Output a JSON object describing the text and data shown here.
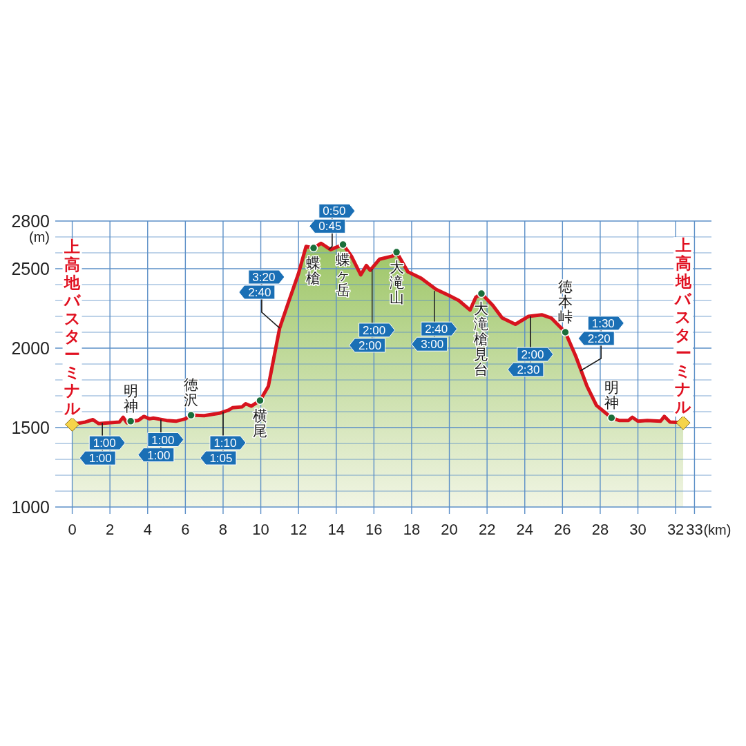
{
  "chart_data": {
    "type": "area",
    "ylabel": "(m)",
    "xlabel": "(km)",
    "xlim": [
      -0.9,
      33.9
    ],
    "ylim": [
      1000,
      2800
    ],
    "xticks": [
      0,
      2,
      4,
      6,
      8,
      10,
      12,
      14,
      16,
      18,
      20,
      22,
      24,
      26,
      28,
      30,
      32,
      33
    ],
    "yticks": [
      1000,
      {
        "value": 1100,
        "label": null
      },
      {
        "value": 1200,
        "label": null
      },
      {
        "value": 1300,
        "label": null
      },
      {
        "value": 1400,
        "label": null
      },
      1500,
      {
        "value": 1600,
        "label": null
      },
      {
        "value": 1700,
        "label": null
      },
      {
        "value": 1800,
        "label": null
      },
      {
        "value": 1900,
        "label": null
      },
      2000,
      {
        "value": 2100,
        "label": null
      },
      {
        "value": 2200,
        "label": null
      },
      {
        "value": 2300,
        "label": null
      },
      {
        "value": 2400,
        "label": null
      },
      2500,
      {
        "value": 2600,
        "label": null
      },
      {
        "value": 2700,
        "label": null
      },
      2800
    ],
    "grid": true,
    "series": [
      {
        "color": "#d7141e",
        "marker": "none",
        "x": [
          0,
          0.7,
          1.1,
          1.4,
          2.0,
          2.5,
          2.7,
          2.9,
          3.1,
          3.5,
          3.8,
          4.1,
          4.3,
          5.0,
          5.5,
          6.0,
          6.3,
          7.0,
          7.8,
          8.3,
          8.5,
          9.0,
          9.2,
          9.5,
          9.96,
          10.4,
          11.0,
          11.5,
          12.0,
          12.4,
          12.8,
          13.2,
          13.7,
          14.36,
          14.8,
          15.3,
          15.6,
          15.8,
          16.3,
          17.0,
          17.2,
          17.8,
          18.5,
          19.3,
          20.0,
          20.5,
          21.1,
          21.4,
          21.7,
          22.3,
          22.8,
          23.5,
          24.2,
          24.9,
          25.4,
          26.15,
          26.7,
          27.3,
          27.8,
          28.6,
          29.0,
          29.5,
          29.7,
          30.0,
          30.5,
          31.2,
          31.4,
          31.7,
          32.4
        ],
        "values": [
          1520,
          1535,
          1550,
          1525,
          1530,
          1535,
          1565,
          1530,
          1540,
          1545,
          1570,
          1555,
          1560,
          1545,
          1540,
          1555,
          1578,
          1575,
          1590,
          1610,
          1625,
          1630,
          1650,
          1635,
          1670,
          1760,
          2126,
          2300,
          2470,
          2640,
          2630,
          2660,
          2620,
          2652,
          2580,
          2461,
          2520,
          2490,
          2560,
          2580,
          2604,
          2480,
          2440,
          2370,
          2330,
          2300,
          2240,
          2320,
          2343,
          2270,
          2190,
          2150,
          2200,
          2210,
          2190,
          2100,
          1950,
          1760,
          1640,
          1561,
          1545,
          1545,
          1565,
          1540,
          1545,
          1540,
          1570,
          1535,
          1530
        ]
      },
      {
        "type": "scatter",
        "color": "#1a6e3a",
        "marker": "circle",
        "x": [
          3.1,
          6.3,
          9.96,
          12.8,
          14.36,
          17.2,
          21.7,
          26.15,
          28.6
        ],
        "values": [
          1540,
          1578,
          1670,
          2630,
          2652,
          2604,
          2343,
          2100,
          1561
        ]
      },
      {
        "type": "scatter",
        "color": "#f5d44a",
        "marker": "diamond",
        "x": [
          0,
          32.4
        ],
        "values": [
          1520,
          1530
        ]
      }
    ],
    "annotations": [
      "上高地バスターミナル",
      {
        "text": "明神",
        "x": 3.1,
        "y": 1540
      },
      {
        "text": "徳沢",
        "x": 6.3,
        "y": 1578
      },
      {
        "text": "横尾",
        "x": 9.96,
        "y": 1670
      },
      {
        "text": "蝶槍",
        "x": 12.8,
        "y": 2630
      },
      {
        "text": "蝶ヶ岳",
        "x": 14.36,
        "y": 2652
      },
      {
        "text": "大滝山",
        "x": 17.2,
        "y": 2604
      },
      {
        "text": "大滝槍見台",
        "x": 21.7,
        "y": 2343
      },
      {
        "text": "徳本峠",
        "x": 26.15,
        "y": 2100
      },
      {
        "text": "明神",
        "x": 28.6,
        "y": 1561
      },
      "上高地バスターミナル",
      {
        "text": "1:00",
        "x": 1.6,
        "y": 1530
      },
      {
        "text": "1:00",
        "x": 1.6,
        "y": 1530
      },
      {
        "text": "1:00",
        "x": 4.7,
        "y": 1550
      },
      {
        "text": "1:00",
        "x": 4.7,
        "y": 1550
      },
      {
        "text": "1:10",
        "x": 8.0,
        "y": 1600
      },
      {
        "text": "1:05",
        "x": 8.0,
        "y": 1600
      },
      {
        "text": "3:20",
        "x": 11.0,
        "y": 2126
      },
      {
        "text": "2:40",
        "x": 11.0,
        "y": 2126
      },
      {
        "text": "0:50",
        "x": 13.6,
        "y": 2620
      },
      {
        "text": "0:45",
        "x": 13.6,
        "y": 2620
      },
      {
        "text": "2:00",
        "x": 15.9,
        "y": 2496
      },
      {
        "text": "2:00",
        "x": 15.9,
        "y": 2496
      },
      {
        "text": "2:40",
        "x": 19.2,
        "y": 2360
      },
      {
        "text": "3:00",
        "x": 19.2,
        "y": 2360
      },
      {
        "text": "2:00",
        "x": 24.3,
        "y": 2200
      },
      {
        "text": "2:30",
        "x": 24.3,
        "y": 2200
      },
      {
        "text": "1:30",
        "x": 26.95,
        "y": 1857
      },
      {
        "text": "2:20",
        "x": 26.95,
        "y": 1857
      }
    ]
  }
}
